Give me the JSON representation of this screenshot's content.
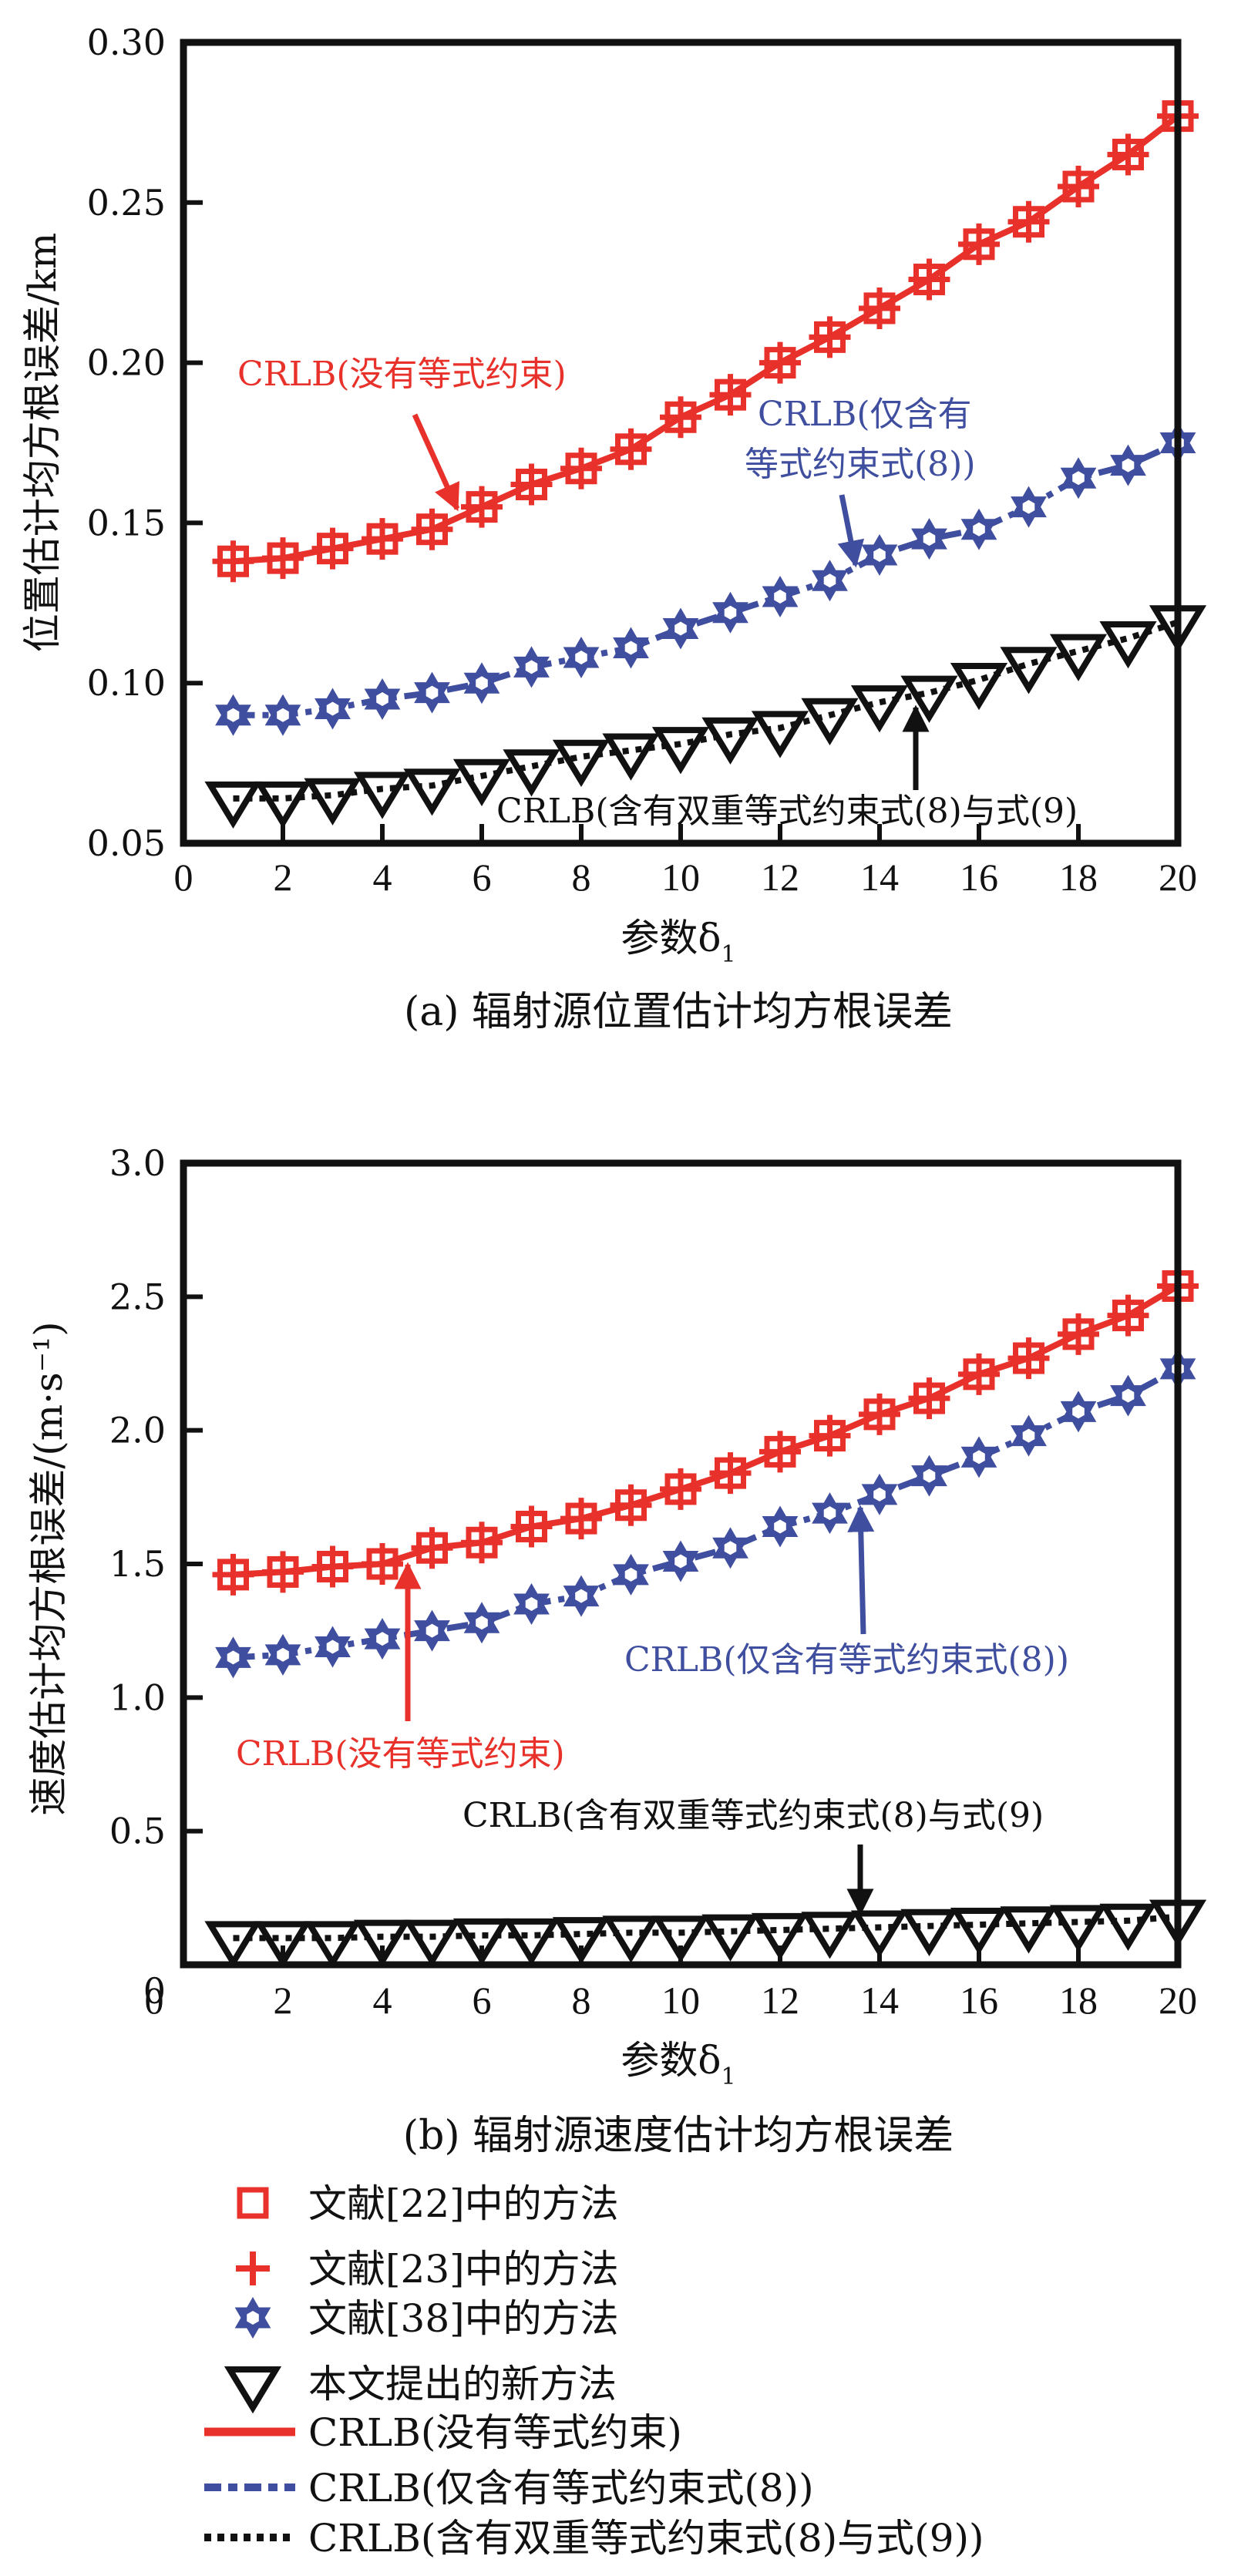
{
  "colors": {
    "red": "#e8312a",
    "blue": "#3f4e9e",
    "black": "#111111"
  },
  "legend": {
    "items": [
      {
        "marker": "square",
        "color": "#e8312a",
        "label": "文献[22]中的方法"
      },
      {
        "marker": "plus",
        "color": "#e8312a",
        "label": "文献[23]中的方法"
      },
      {
        "marker": "star",
        "color": "#3f4e9e",
        "label": "文献[38]中的方法"
      },
      {
        "marker": "triangle-down",
        "color": "#111111",
        "label": "本文提出的新方法"
      },
      {
        "line": "solid",
        "color": "#e8312a",
        "label": "CRLB(没有等式约束)"
      },
      {
        "line": "dashdot",
        "color": "#3f4e9e",
        "label": "CRLB(仅含有等式约束式(8))"
      },
      {
        "line": "dotted",
        "color": "#111111",
        "label": "CRLB(含有双重等式约束式(8)与式(9))"
      }
    ]
  },
  "chart_data": [
    {
      "type": "line",
      "caption": "(a) 辐射源位置估计均方根误差",
      "xlabel": "参数δ",
      "xlabel_sub": "1",
      "ylabel": "位置估计均方根误差/km",
      "xlim": [
        0,
        20
      ],
      "ylim": [
        0.05,
        0.3
      ],
      "xticks": [
        "0",
        "2",
        "4",
        "6",
        "8",
        "10",
        "12",
        "14",
        "16",
        "18",
        "20"
      ],
      "yticks": [
        "0.05",
        "0.10",
        "0.15",
        "0.20",
        "0.25",
        "0.30"
      ],
      "grid": false,
      "x": [
        1,
        2,
        3,
        4,
        5,
        6,
        7,
        8,
        9,
        10,
        11,
        12,
        13,
        14,
        15,
        16,
        17,
        18,
        19,
        20
      ],
      "series": [
        {
          "name": "文献[22]中的方法 / 文献[23]中的方法 / CRLB(没有等式约束)",
          "color": "#e8312a",
          "marker": "square-plus",
          "line": "solid",
          "values": [
            0.138,
            0.139,
            0.142,
            0.145,
            0.148,
            0.155,
            0.162,
            0.167,
            0.173,
            0.183,
            0.19,
            0.2,
            0.208,
            0.217,
            0.226,
            0.237,
            0.244,
            0.255,
            0.265,
            0.277
          ]
        },
        {
          "name": "文献[38]中的方法 / CRLB(仅含有等式约束式(8))",
          "color": "#3f4e9e",
          "marker": "star",
          "line": "dashdot",
          "values": [
            0.09,
            0.09,
            0.092,
            0.095,
            0.097,
            0.1,
            0.105,
            0.108,
            0.111,
            0.117,
            0.122,
            0.127,
            0.132,
            0.14,
            0.145,
            0.148,
            0.155,
            0.164,
            0.168,
            0.175
          ]
        },
        {
          "name": "本文提出的新方法 / CRLB(含有双重等式约束式(8)与式(9))",
          "color": "#111111",
          "marker": "triangle-down",
          "line": "dotted",
          "values": [
            0.064,
            0.064,
            0.065,
            0.067,
            0.068,
            0.071,
            0.074,
            0.077,
            0.079,
            0.081,
            0.084,
            0.086,
            0.09,
            0.094,
            0.097,
            0.101,
            0.106,
            0.11,
            0.114,
            0.119
          ]
        }
      ],
      "annotations": [
        {
          "text": "CRLB(没有等式约束)",
          "color": "#e8312a",
          "points_to": {
            "x": 5.5,
            "y": 0.15
          }
        },
        {
          "text": "CRLB(仅含有",
          "text2": "等式约束式(8))",
          "color": "#3f4e9e",
          "points_to": {
            "x": 13.5,
            "y": 0.135
          }
        },
        {
          "text": "CRLB(含有双重等式约束式(8)与式(9)",
          "color": "#111111",
          "points_to": {
            "x": 14.6,
            "y": 0.096
          }
        }
      ]
    },
    {
      "type": "line",
      "caption": "(b) 辐射源速度估计均方根误差",
      "xlabel": "参数δ",
      "xlabel_sub": "1",
      "ylabel": "速度估计均方根误差/(m·s⁻¹)",
      "xlim": [
        0,
        20
      ],
      "ylim": [
        0,
        3.0
      ],
      "xticks": [
        "0",
        "2",
        "4",
        "6",
        "8",
        "10",
        "12",
        "14",
        "16",
        "18",
        "20"
      ],
      "yticks": [
        "0",
        "0.5",
        "1.0",
        "1.5",
        "2.0",
        "2.5",
        "3.0"
      ],
      "grid": false,
      "x": [
        1,
        2,
        3,
        4,
        5,
        6,
        7,
        8,
        9,
        10,
        11,
        12,
        13,
        14,
        15,
        16,
        17,
        18,
        19,
        20
      ],
      "series": [
        {
          "name": "文献[22]中的方法 / 文献[23]中的方法 / CRLB(没有等式约束)",
          "color": "#e8312a",
          "marker": "square-plus",
          "line": "solid",
          "values": [
            1.46,
            1.47,
            1.49,
            1.5,
            1.56,
            1.58,
            1.64,
            1.67,
            1.72,
            1.78,
            1.84,
            1.92,
            1.98,
            2.06,
            2.12,
            2.21,
            2.27,
            2.36,
            2.43,
            2.54
          ]
        },
        {
          "name": "文献[38]中的方法 / CRLB(仅含有等式约束式(8))",
          "color": "#3f4e9e",
          "marker": "star",
          "line": "dashdot",
          "values": [
            1.15,
            1.16,
            1.19,
            1.22,
            1.25,
            1.28,
            1.35,
            1.38,
            1.46,
            1.51,
            1.56,
            1.64,
            1.69,
            1.76,
            1.83,
            1.9,
            1.98,
            2.07,
            2.13,
            2.23
          ]
        },
        {
          "name": "本文提出的新方法 / CRLB(含有双重等式约束式(8)与式(9))",
          "color": "#111111",
          "marker": "triangle-down",
          "line": "dotted",
          "values": [
            0.1,
            0.1,
            0.1,
            0.105,
            0.105,
            0.11,
            0.11,
            0.115,
            0.12,
            0.12,
            0.125,
            0.13,
            0.135,
            0.14,
            0.145,
            0.15,
            0.155,
            0.16,
            0.165,
            0.18
          ]
        }
      ],
      "annotations": [
        {
          "text": "CRLB(没有等式约束)",
          "color": "#e8312a",
          "points_to": {
            "x": 4.5,
            "y": 1.51
          }
        },
        {
          "text": "CRLB(仅含有等式约束式(8))",
          "color": "#3f4e9e",
          "points_to": {
            "x": 13.6,
            "y": 1.72
          }
        },
        {
          "text": "CRLB(含有双重等式约束式(8)与式(9)",
          "color": "#111111",
          "points_to": {
            "x": 13.6,
            "y": 0.17
          }
        }
      ]
    }
  ]
}
